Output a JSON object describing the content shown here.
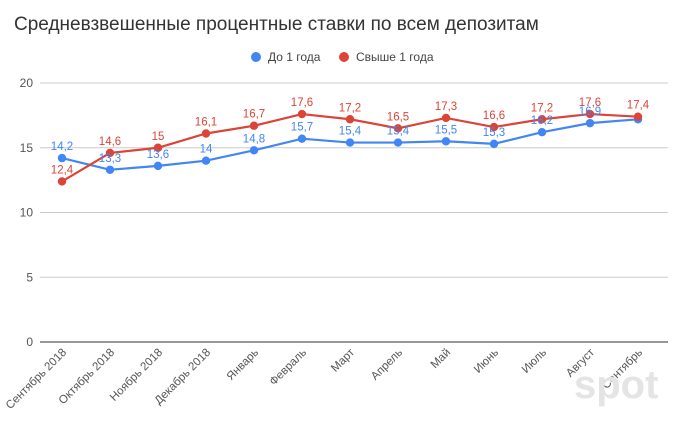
{
  "chart_data": {
    "type": "line",
    "title": "Средневзвешенные процентные ставки по всем депозитам",
    "xlabel": "",
    "ylabel": "",
    "categories": [
      "Сентябрь 2018",
      "Октябрь 2018",
      "Ноябрь 2018",
      "Декабрь 2018",
      "Январь",
      "Февраль",
      "Март",
      "Апрель",
      "Май",
      "Июнь",
      "Июль",
      "Август",
      "Сентябрь"
    ],
    "ylim": [
      0,
      20
    ],
    "yticks": [
      "0",
      "5",
      "10",
      "15",
      "20"
    ],
    "grid": true,
    "legend_position": "top",
    "series": [
      {
        "name": "До 1 года",
        "color": "#4285f4",
        "values": [
          14.2,
          13.3,
          13.6,
          14,
          14.8,
          15.7,
          15.4,
          15.4,
          15.5,
          15.3,
          16.2,
          16.9,
          17.2
        ],
        "labels": [
          "14,2",
          "13,3",
          "13,6",
          "14",
          "14,8",
          "15,7",
          "15,4",
          "15,4",
          "15,5",
          "15,3",
          "16,2",
          "16,9",
          ""
        ]
      },
      {
        "name": "Свыше 1 года",
        "color": "#db4437",
        "values": [
          12.4,
          14.6,
          15,
          16.1,
          16.7,
          17.6,
          17.2,
          16.5,
          17.3,
          16.6,
          17.2,
          17.6,
          17.4
        ],
        "labels": [
          "12,4",
          "14,6",
          "15",
          "16,1",
          "16,7",
          "17,6",
          "17,2",
          "16,5",
          "17,3",
          "16,6",
          "17,2",
          "17,6",
          "17,4"
        ]
      }
    ]
  },
  "watermark": "spot"
}
